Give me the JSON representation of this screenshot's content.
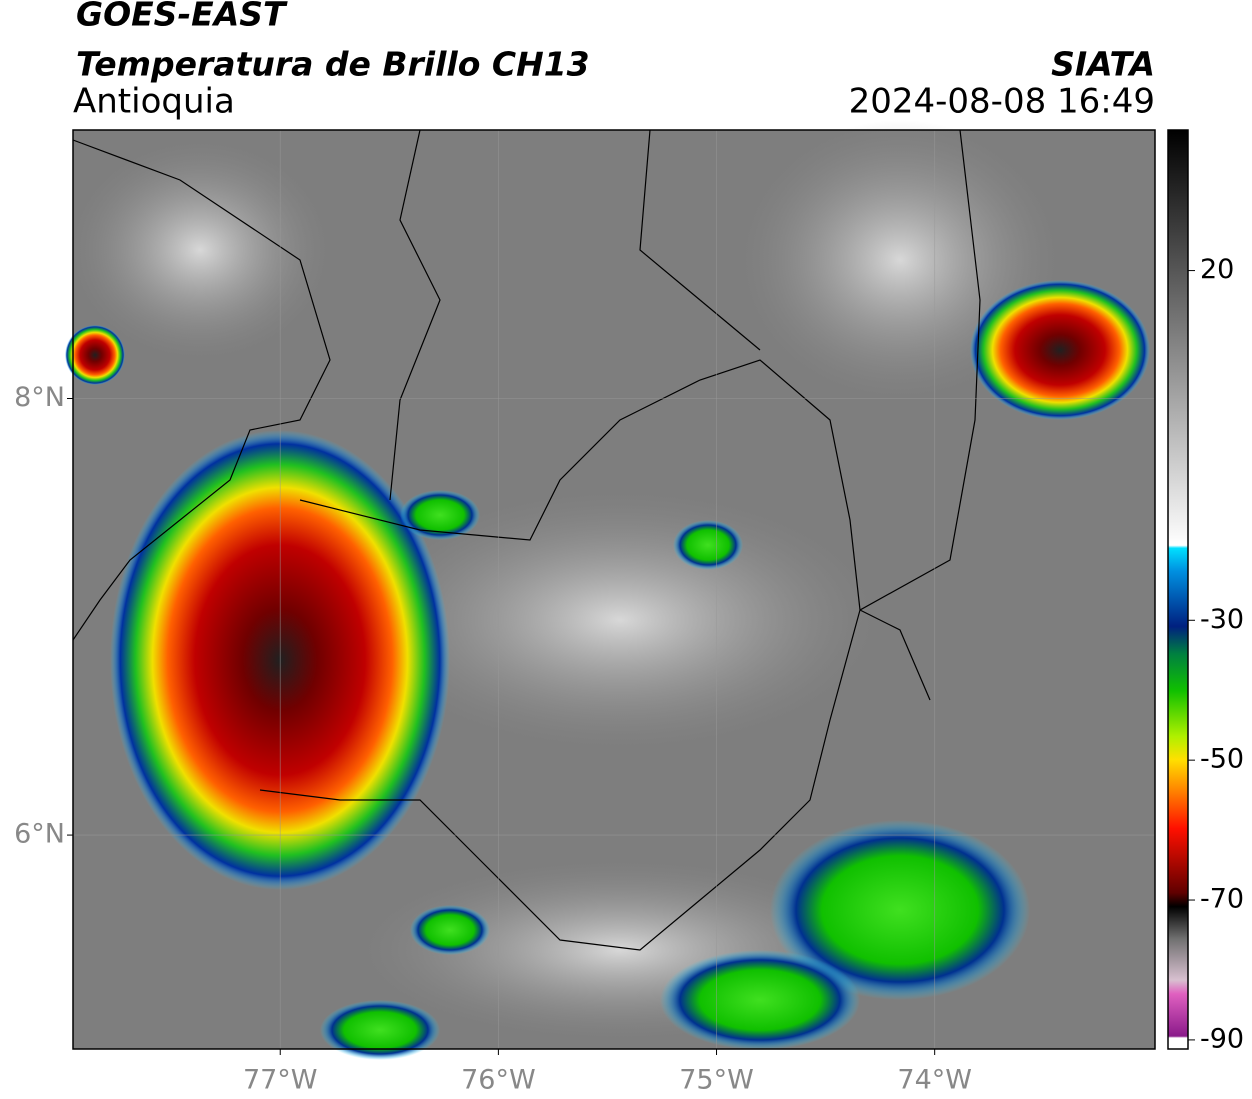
{
  "header": {
    "title": "GOES-EAST",
    "subtitle": "Temperatura de Brillo CH13",
    "region": "Antioquia",
    "source": "SIATA",
    "datetime": "2024-08-08 16:49"
  },
  "map": {
    "xlim": [
      -77.95,
      -72.99
    ],
    "ylim": [
      5.02,
      9.23
    ],
    "xticks": [
      {
        "value": -77,
        "label": "77°W"
      },
      {
        "value": -76,
        "label": "76°W"
      },
      {
        "value": -75,
        "label": "75°W"
      },
      {
        "value": -74,
        "label": "74°W"
      }
    ],
    "yticks": [
      {
        "value": 8,
        "label": "8°N"
      },
      {
        "value": 6,
        "label": "6°N"
      }
    ],
    "grid": true
  },
  "colorbar": {
    "lim": [
      -91.3,
      40.1
    ],
    "ticks": [
      20,
      -30,
      -50,
      -70,
      -90
    ]
  }
}
